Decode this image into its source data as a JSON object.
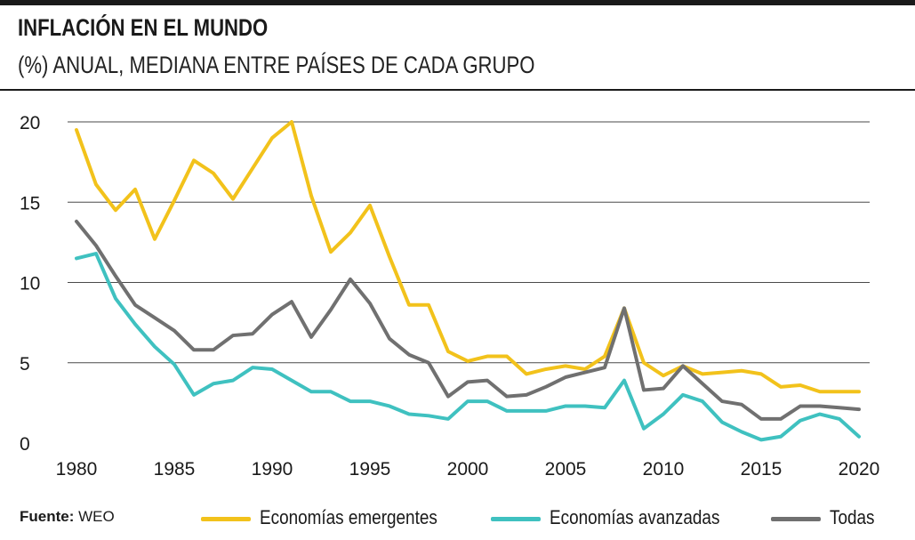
{
  "header": {
    "title": "INFLACIÓN EN EL MUNDO",
    "subtitle": "(%) ANUAL, MEDIANA ENTRE PAÍSES DE CADA GRUPO"
  },
  "footer": {
    "source_label": "Fuente:",
    "source_value": "WEO"
  },
  "legend": [
    {
      "key": "emergentes",
      "label": "Economías emergentes",
      "color": "#f2c21b"
    },
    {
      "key": "avanzadas",
      "label": "Economías avanzadas",
      "color": "#3fc1c0"
    },
    {
      "key": "todas",
      "label": "Todas",
      "color": "#707070"
    }
  ],
  "chart_data": {
    "type": "line",
    "title": "INFLACIÓN EN EL MUNDO",
    "subtitle": "(%) ANUAL, MEDIANA ENTRE PAÍSES DE CADA GRUPO",
    "xlabel": "",
    "ylabel": "",
    "xlim": [
      1980,
      2020
    ],
    "ylim": [
      0,
      20
    ],
    "xticks": [
      1980,
      1985,
      1990,
      1995,
      2000,
      2005,
      2010,
      2015,
      2020
    ],
    "yticks": [
      0,
      5,
      10,
      15,
      20
    ],
    "grid": "horizontal",
    "legend_position": "bottom",
    "x": [
      1980,
      1981,
      1982,
      1983,
      1984,
      1985,
      1986,
      1987,
      1988,
      1989,
      1990,
      1991,
      1992,
      1993,
      1994,
      1995,
      1996,
      1997,
      1998,
      1999,
      2000,
      2001,
      2002,
      2003,
      2004,
      2005,
      2006,
      2007,
      2008,
      2009,
      2010,
      2011,
      2012,
      2013,
      2014,
      2015,
      2016,
      2017,
      2018,
      2019,
      2020
    ],
    "series": [
      {
        "name": "Economías emergentes",
        "color": "#f2c21b",
        "values": [
          19.5,
          16.1,
          14.5,
          15.8,
          12.7,
          15.1,
          17.6,
          16.8,
          15.2,
          17.1,
          19.0,
          20.0,
          15.4,
          11.9,
          13.1,
          14.8,
          11.6,
          8.6,
          8.6,
          5.7,
          5.1,
          5.4,
          5.4,
          4.3,
          4.6,
          4.8,
          4.6,
          5.4,
          8.4,
          5.0,
          4.2,
          4.8,
          4.3,
          4.4,
          4.5,
          4.3,
          3.5,
          3.6,
          3.2,
          3.2,
          3.2
        ]
      },
      {
        "name": "Economías avanzadas",
        "color": "#3fc1c0",
        "values": [
          11.5,
          11.8,
          9.0,
          7.4,
          6.0,
          4.9,
          3.0,
          3.7,
          3.9,
          4.7,
          4.6,
          3.9,
          3.2,
          3.2,
          2.6,
          2.6,
          2.3,
          1.8,
          1.7,
          1.5,
          2.6,
          2.6,
          2.0,
          2.0,
          2.0,
          2.3,
          2.3,
          2.2,
          3.9,
          0.9,
          1.8,
          3.0,
          2.6,
          1.3,
          0.7,
          0.2,
          0.4,
          1.4,
          1.8,
          1.5,
          0.4
        ]
      },
      {
        "name": "Todas",
        "color": "#707070",
        "values": [
          13.8,
          12.3,
          10.4,
          8.6,
          7.8,
          7.0,
          5.8,
          5.8,
          6.7,
          6.8,
          8.0,
          8.8,
          6.6,
          8.3,
          10.2,
          8.7,
          6.5,
          5.5,
          5.0,
          2.9,
          3.8,
          3.9,
          2.9,
          3.0,
          3.5,
          4.1,
          4.4,
          4.7,
          8.4,
          3.3,
          3.4,
          4.8,
          3.7,
          2.6,
          2.4,
          1.5,
          1.5,
          2.3,
          2.3,
          2.2,
          2.1
        ]
      }
    ]
  }
}
